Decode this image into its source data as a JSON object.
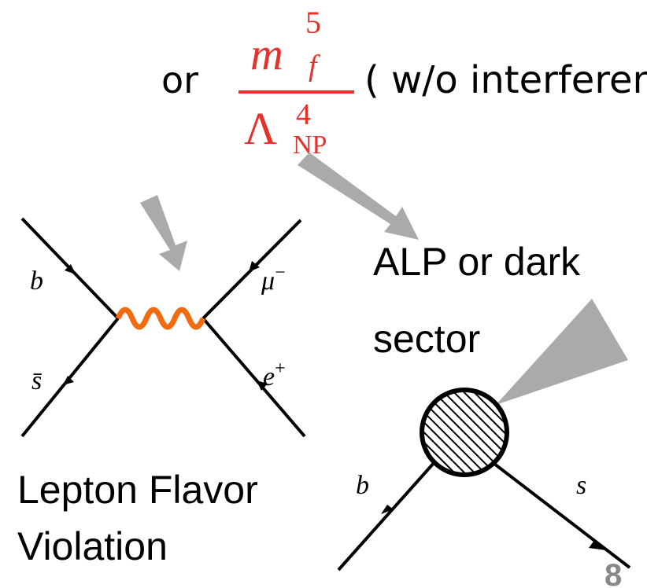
{
  "header": {
    "connector": "or",
    "numerator": {
      "base": "m",
      "sup": "5",
      "sub": "f"
    },
    "denominator": {
      "base": "Λ",
      "sup": "4",
      "sub": "NP"
    },
    "note": "( w/o interference)"
  },
  "lfv_diagram": {
    "labels": [
      {
        "base": "b"
      },
      {
        "base": "s̄"
      },
      {
        "base": "μ",
        "sup": "−"
      },
      {
        "base": "e",
        "sup": "+"
      }
    ],
    "caption": [
      "Lepton Flavor",
      "Violation"
    ]
  },
  "alp_diagram": {
    "caption": [
      "ALP or dark",
      "sector"
    ],
    "labels": [
      "b",
      "s"
    ]
  },
  "page_number": "8"
}
